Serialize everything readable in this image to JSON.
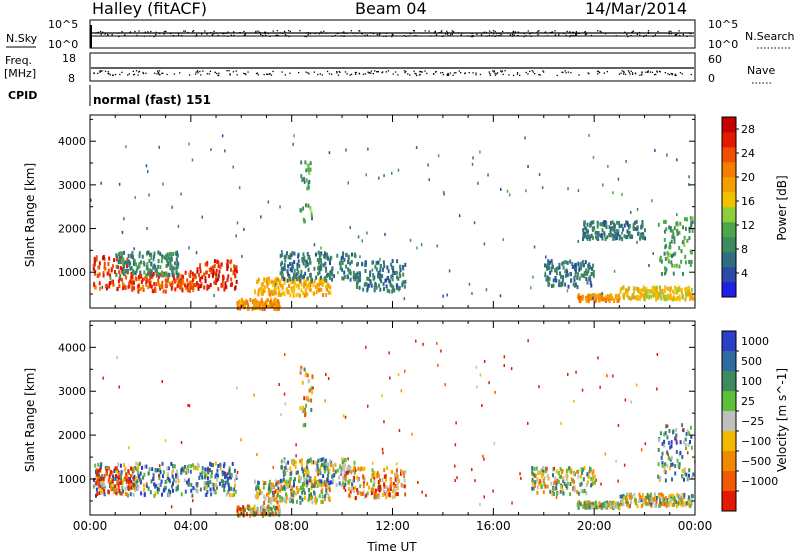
{
  "header": {
    "station": "Halley (fitACF)",
    "beam": "Beam 04",
    "date": "14/Mar/2014"
  },
  "top_panels": {
    "nsky_label": "N.Sky",
    "nsky_ticks": [
      "10^5",
      "10^0"
    ],
    "nsearch_label": "N.Search",
    "nsearch_ticks": [
      "10^5",
      "10^0"
    ],
    "freq_label": "Freq.",
    "freq_unit": "[MHz]",
    "freq_ticks": [
      "18",
      "8"
    ],
    "nave_label": "Nave",
    "nave_ticks": [
      "60",
      "0"
    ],
    "cpid_label": "CPID",
    "cpid_value": "normal (fast) 151"
  },
  "chart_data": [
    {
      "type": "heatmap",
      "name": "power-panel",
      "xlabel": "Time UT",
      "ylabel": "Slant Range [km]",
      "x_ticks": [
        "00:00",
        "04:00",
        "08:00",
        "12:00",
        "16:00",
        "20:00",
        "00:00"
      ],
      "xlim_hours": [
        0,
        24
      ],
      "y_ticks": [
        1000,
        2000,
        3000,
        4000
      ],
      "ylim": [
        180,
        4600
      ],
      "colorbar": {
        "label": "Power [dB]",
        "ticks": [
          4,
          8,
          12,
          16,
          20,
          24,
          28
        ],
        "range": [
          0,
          30
        ],
        "colors": [
          "#1f1fe8",
          "#2b4aa8",
          "#2f6e7e",
          "#3f8a5c",
          "#4aa84a",
          "#8ccf3a",
          "#f2c200",
          "#f5a000",
          "#f47d00",
          "#f04e00",
          "#e21a00",
          "#c40000"
        ]
      },
      "regions": [
        {
          "t0": 0.1,
          "t1": 1.6,
          "r0": 650,
          "r1": 1400,
          "v": 25
        },
        {
          "t0": 1.6,
          "t1": 4.2,
          "r0": 600,
          "r1": 1050,
          "v": 24
        },
        {
          "t0": 4.2,
          "t1": 5.8,
          "r0": 650,
          "r1": 1300,
          "v": 26
        },
        {
          "t0": 1.0,
          "t1": 3.5,
          "r0": 950,
          "r1": 1500,
          "v": 8
        },
        {
          "t0": 5.8,
          "t1": 7.5,
          "r0": 200,
          "r1": 420,
          "v": 20
        },
        {
          "t0": 6.5,
          "t1": 9.5,
          "r0": 500,
          "r1": 900,
          "v": 18
        },
        {
          "t0": 7.5,
          "t1": 10.5,
          "r0": 850,
          "r1": 1500,
          "v": 7
        },
        {
          "t0": 8.3,
          "t1": 8.8,
          "r0": 2200,
          "r1": 3600,
          "v": 10
        },
        {
          "t0": 10.5,
          "t1": 12.5,
          "r0": 600,
          "r1": 1300,
          "v": 7
        },
        {
          "t0": 18.0,
          "t1": 20.0,
          "r0": 700,
          "r1": 1300,
          "v": 7
        },
        {
          "t0": 19.3,
          "t1": 21.0,
          "r0": 380,
          "r1": 520,
          "v": 20
        },
        {
          "t0": 21.0,
          "t1": 23.9,
          "r0": 420,
          "r1": 700,
          "v": 17
        },
        {
          "t0": 22.5,
          "t1": 23.9,
          "r0": 1000,
          "r1": 2300,
          "v": 10
        },
        {
          "t0": 19.5,
          "t1": 22.0,
          "r0": 1800,
          "r1": 2200,
          "v": 7
        }
      ]
    },
    {
      "type": "heatmap",
      "name": "velocity-panel",
      "xlabel": "Time UT",
      "ylabel": "Slant Range [km]",
      "x_ticks": [
        "00:00",
        "04:00",
        "08:00",
        "12:00",
        "16:00",
        "20:00",
        "00:00"
      ],
      "xlim_hours": [
        0,
        24
      ],
      "y_ticks": [
        1000,
        2000,
        3000,
        4000
      ],
      "ylim": [
        180,
        4600
      ],
      "colorbar": {
        "label": "Velocity [m s^-1]",
        "ticks": [
          "1000",
          "500",
          "100",
          "25",
          "−25",
          "−100",
          "−500",
          "−1000"
        ],
        "colors": [
          "#2a3ec8",
          "#2f6aa0",
          "#3f8a5c",
          "#5bbf3a",
          "#bfbfbf",
          "#f5b800",
          "#f08a00",
          "#f05a00",
          "#e21a00"
        ]
      },
      "regions": [
        {
          "t0": 0.1,
          "t1": 5.8,
          "r0": 650,
          "r1": 1400,
          "v": 2
        },
        {
          "t0": 0.2,
          "t1": 1.8,
          "r0": 700,
          "r1": 1300,
          "v": 7
        },
        {
          "t0": 5.8,
          "t1": 7.5,
          "r0": 200,
          "r1": 420,
          "v": 5
        },
        {
          "t0": 6.5,
          "t1": 9.5,
          "r0": 500,
          "r1": 1000,
          "v": 4
        },
        {
          "t0": 7.5,
          "t1": 10.5,
          "r0": 900,
          "r1": 1500,
          "v": 3
        },
        {
          "t0": 8.3,
          "t1": 8.8,
          "r0": 2200,
          "r1": 3600,
          "v": 5
        },
        {
          "t0": 10.0,
          "t1": 12.5,
          "r0": 600,
          "r1": 1300,
          "v": 6
        },
        {
          "t0": 17.5,
          "t1": 20.0,
          "r0": 700,
          "r1": 1300,
          "v": 4
        },
        {
          "t0": 19.3,
          "t1": 21.0,
          "r0": 380,
          "r1": 520,
          "v": 4
        },
        {
          "t0": 21.0,
          "t1": 23.9,
          "r0": 420,
          "r1": 700,
          "v": 4
        },
        {
          "t0": 22.5,
          "t1": 23.9,
          "r0": 1000,
          "r1": 2300,
          "v": 2
        }
      ]
    }
  ]
}
